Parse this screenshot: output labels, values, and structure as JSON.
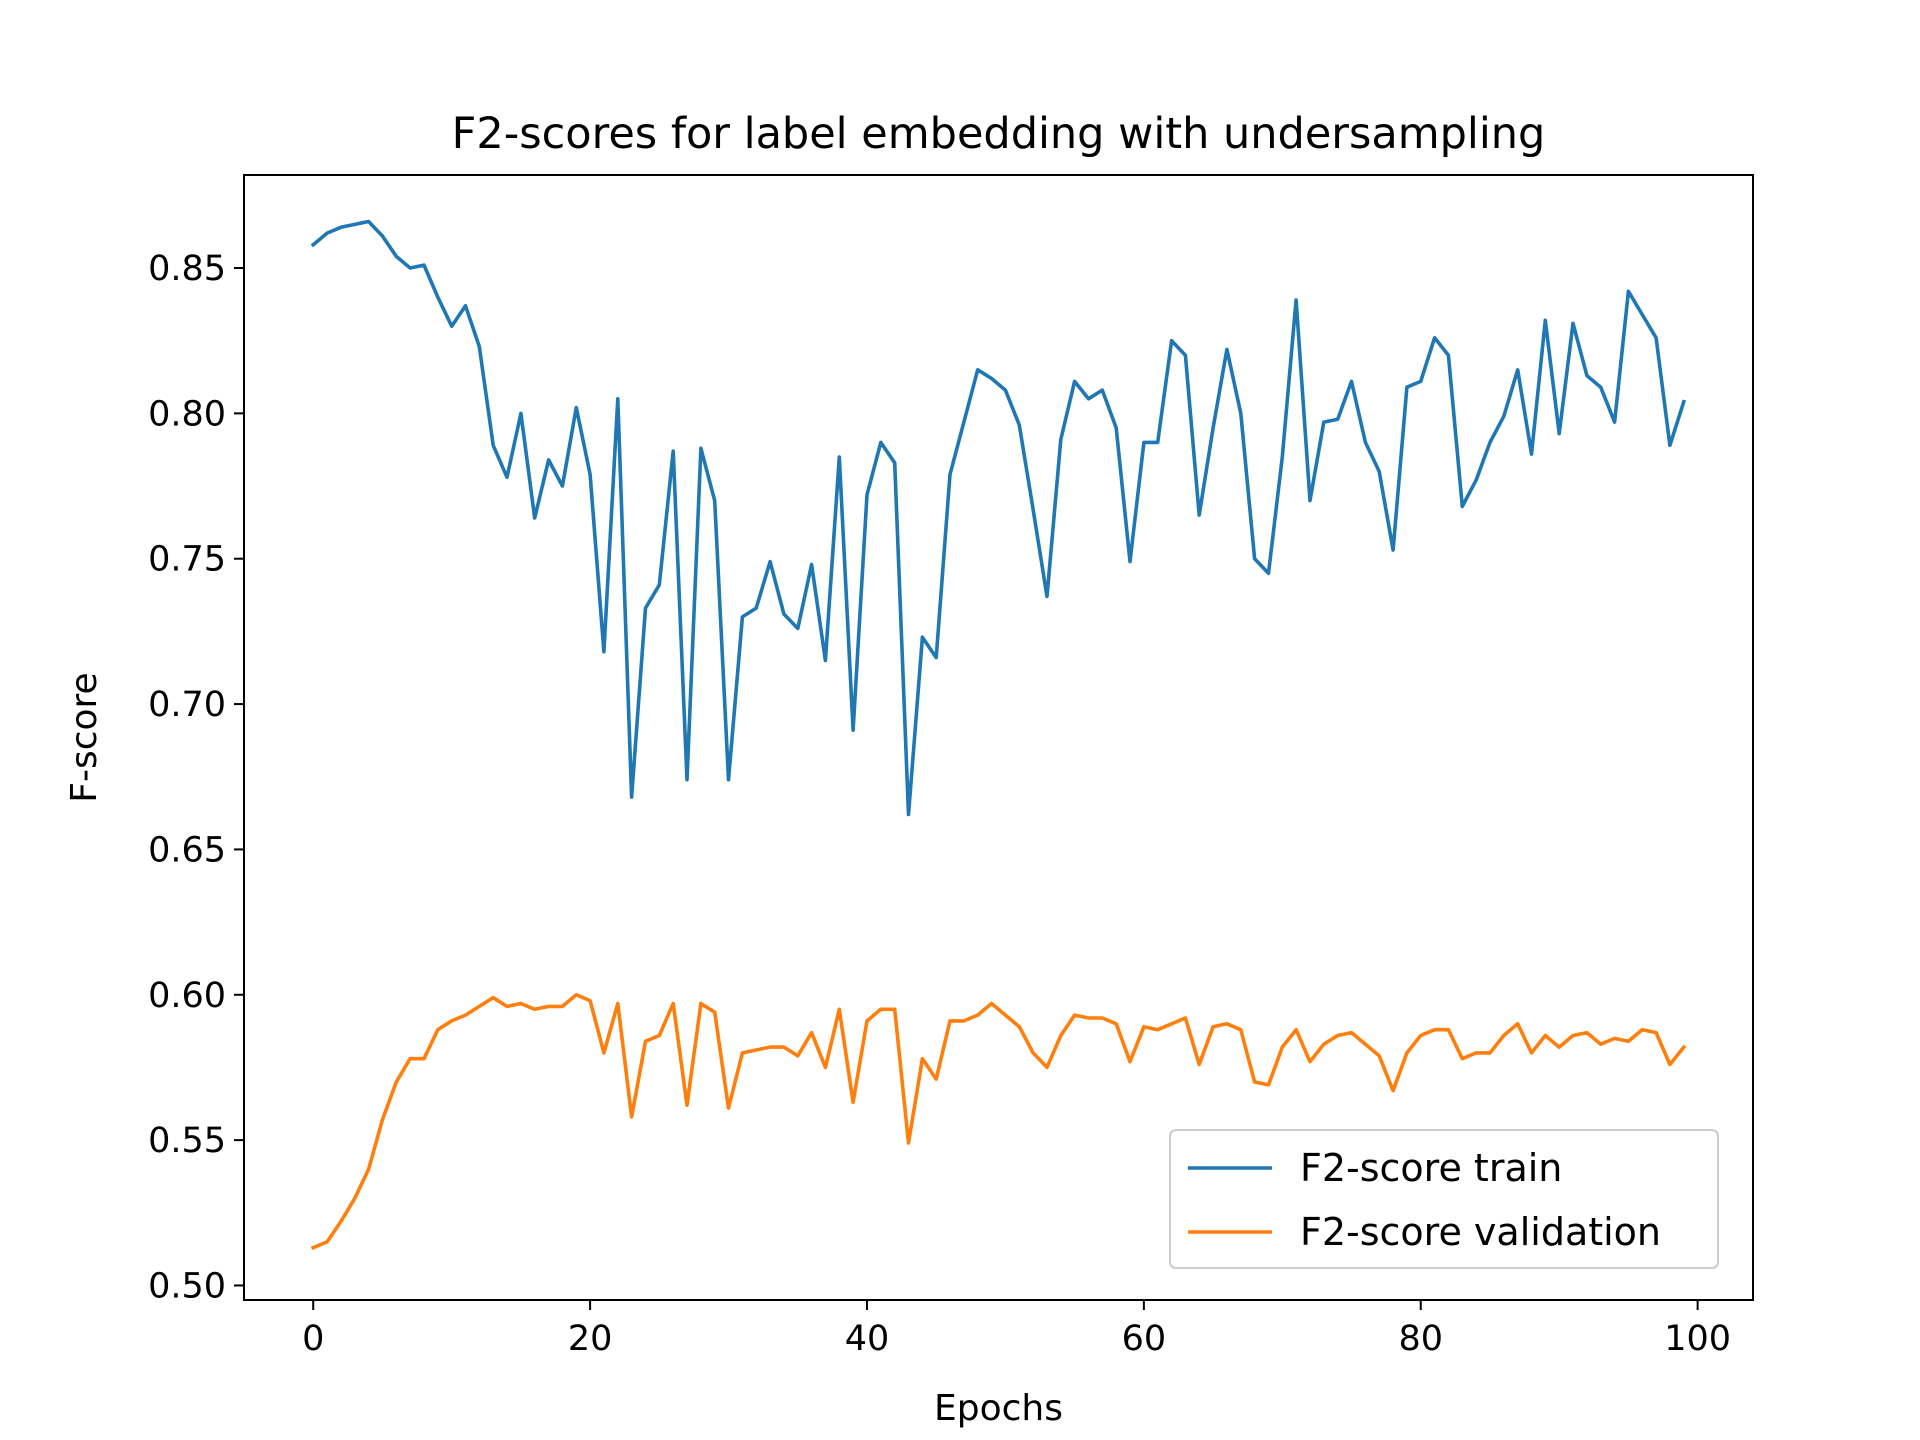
{
  "chart_data": {
    "type": "line",
    "title": "F2-scores for label embedding with undersampling",
    "xlabel": "Epochs",
    "ylabel": "F-score",
    "xlim": [
      -5,
      104
    ],
    "ylim": [
      0.495,
      0.882
    ],
    "xticks": [
      0,
      20,
      40,
      60,
      80,
      100
    ],
    "xtick_labels": [
      "0",
      "20",
      "40",
      "60",
      "80",
      "100"
    ],
    "yticks": [
      0.5,
      0.55,
      0.6,
      0.65,
      0.7,
      0.75,
      0.8,
      0.85
    ],
    "ytick_labels": [
      "0.50",
      "0.55",
      "0.60",
      "0.65",
      "0.70",
      "0.75",
      "0.80",
      "0.85"
    ],
    "grid": false,
    "legend_position": "lower-right",
    "series": [
      {
        "name": "F2-score train",
        "color": "#1f77b4",
        "values": [
          0.858,
          0.862,
          0.864,
          0.865,
          0.866,
          0.861,
          0.854,
          0.85,
          0.851,
          0.84,
          0.83,
          0.837,
          0.823,
          0.789,
          0.778,
          0.8,
          0.764,
          0.784,
          0.775,
          0.802,
          0.779,
          0.718,
          0.805,
          0.668,
          0.733,
          0.741,
          0.787,
          0.674,
          0.788,
          0.77,
          0.674,
          0.73,
          0.733,
          0.749,
          0.731,
          0.726,
          0.748,
          0.715,
          0.785,
          0.691,
          0.772,
          0.79,
          0.783,
          0.662,
          0.723,
          0.716,
          0.779,
          0.797,
          0.815,
          0.812,
          0.808,
          0.796,
          0.767,
          0.737,
          0.791,
          0.811,
          0.805,
          0.808,
          0.795,
          0.749,
          0.79,
          0.79,
          0.825,
          0.82,
          0.765,
          0.795,
          0.822,
          0.8,
          0.75,
          0.745,
          0.785,
          0.839,
          0.77,
          0.797,
          0.798,
          0.811,
          0.79,
          0.78,
          0.753,
          0.809,
          0.811,
          0.826,
          0.82,
          0.768,
          0.777,
          0.79,
          0.799,
          0.815,
          0.786,
          0.832,
          0.793,
          0.831,
          0.813,
          0.809,
          0.797,
          0.842,
          0.834,
          0.826,
          0.789,
          0.804
        ]
      },
      {
        "name": "F2-score validation",
        "color": "#ff7f0e",
        "values": [
          0.513,
          0.515,
          0.522,
          0.53,
          0.54,
          0.557,
          0.57,
          0.578,
          0.578,
          0.588,
          0.591,
          0.593,
          0.596,
          0.599,
          0.596,
          0.597,
          0.595,
          0.596,
          0.596,
          0.6,
          0.598,
          0.58,
          0.597,
          0.558,
          0.584,
          0.586,
          0.597,
          0.562,
          0.597,
          0.594,
          0.561,
          0.58,
          0.581,
          0.582,
          0.582,
          0.579,
          0.587,
          0.575,
          0.595,
          0.563,
          0.591,
          0.595,
          0.595,
          0.549,
          0.578,
          0.571,
          0.591,
          0.591,
          0.593,
          0.597,
          0.593,
          0.589,
          0.58,
          0.575,
          0.586,
          0.593,
          0.592,
          0.592,
          0.59,
          0.577,
          0.589,
          0.588,
          0.59,
          0.592,
          0.576,
          0.589,
          0.59,
          0.588,
          0.57,
          0.569,
          0.582,
          0.588,
          0.577,
          0.583,
          0.586,
          0.587,
          0.583,
          0.579,
          0.567,
          0.58,
          0.586,
          0.588,
          0.588,
          0.578,
          0.58,
          0.58,
          0.586,
          0.59,
          0.58,
          0.586,
          0.582,
          0.586,
          0.587,
          0.583,
          0.585,
          0.584,
          0.588,
          0.587,
          0.576,
          0.582
        ]
      }
    ]
  }
}
